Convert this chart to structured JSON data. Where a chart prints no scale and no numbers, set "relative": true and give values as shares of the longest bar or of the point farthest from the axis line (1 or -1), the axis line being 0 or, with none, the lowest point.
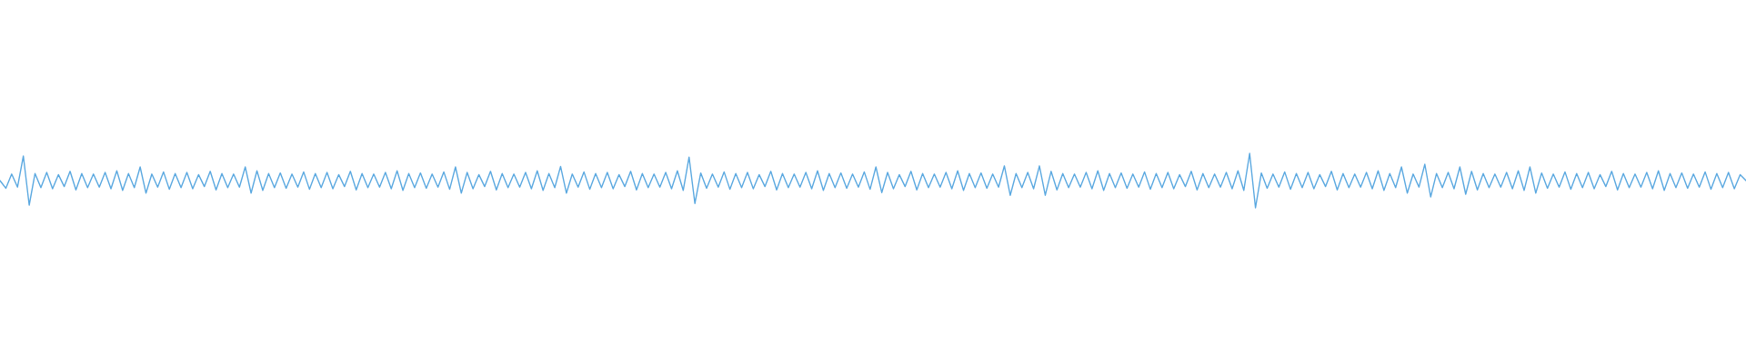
{
  "chart_data": {
    "type": "line",
    "relative": true,
    "categories": [
      null,
      null,
      null,
      null,
      null,
      null,
      null,
      null,
      null,
      null,
      null,
      null,
      null,
      null,
      null,
      null,
      null,
      null,
      null,
      null,
      null,
      null,
      null,
      null,
      null,
      null,
      null,
      null,
      null,
      null,
      null,
      null,
      null,
      null,
      null,
      null,
      null,
      null,
      null,
      null,
      null,
      null,
      null,
      null,
      null,
      null,
      null,
      null,
      null,
      null,
      null,
      null,
      null,
      null,
      null,
      null,
      null,
      null,
      null,
      null,
      null,
      null,
      null,
      null,
      null,
      null,
      null,
      null,
      null,
      null,
      null,
      null,
      null,
      null,
      null,
      null,
      null,
      null,
      null,
      null,
      null,
      null,
      null,
      null,
      null,
      null,
      null,
      null,
      null,
      null,
      null,
      null,
      null,
      null,
      null,
      null,
      null,
      null,
      null,
      null,
      null,
      null,
      null,
      null,
      null,
      null,
      null,
      null,
      null,
      null,
      null,
      null,
      null,
      null,
      null,
      null,
      null,
      null,
      null,
      null,
      null,
      null,
      null,
      null,
      null,
      null,
      null,
      null,
      null,
      null,
      null,
      null,
      null,
      null,
      null,
      null,
      null,
      null,
      null,
      null,
      null,
      null,
      null,
      null,
      null,
      null,
      null,
      null,
      null,
      null,
      null,
      null,
      null,
      null,
      null,
      null,
      null,
      null,
      null,
      null,
      null,
      null,
      null,
      null,
      null,
      null,
      null,
      null,
      null,
      null,
      null,
      null,
      null,
      null,
      null,
      null,
      null,
      null,
      null,
      null,
      null,
      null,
      null,
      null,
      null,
      null,
      null,
      null,
      null,
      null,
      null,
      null,
      null,
      null,
      null,
      null,
      null,
      null,
      null,
      null,
      null,
      null,
      null,
      null,
      null,
      null,
      null,
      null,
      null,
      null,
      null,
      null,
      null,
      null,
      null,
      null,
      null,
      null,
      null,
      null,
      null,
      null,
      null,
      null,
      null,
      null,
      null,
      null,
      null,
      null,
      null,
      null,
      null,
      null,
      null,
      null,
      null,
      null,
      null,
      null,
      null,
      null,
      null,
      null,
      null,
      null,
      null,
      null,
      null,
      null,
      null,
      null,
      null,
      null,
      null,
      null,
      null,
      null,
      null,
      null,
      null,
      null,
      null,
      null,
      null,
      null,
      null,
      null,
      null,
      null,
      null,
      null,
      null,
      null,
      null,
      null,
      null,
      null,
      null,
      null,
      null,
      null,
      null,
      null,
      null,
      null,
      null,
      null,
      null,
      null,
      null,
      null,
      null,
      null,
      null,
      null,
      null,
      null,
      null,
      null
    ],
    "series": [
      {
        "color": "#5aa8e0",
        "values": [
          0.5,
          0.36,
          0.62,
          0.38,
          0.95,
          0.05,
          0.63,
          0.37,
          0.65,
          0.35,
          0.61,
          0.39,
          0.67,
          0.33,
          0.63,
          0.37,
          0.62,
          0.38,
          0.65,
          0.35,
          0.68,
          0.32,
          0.63,
          0.37,
          0.75,
          0.27,
          0.62,
          0.38,
          0.66,
          0.34,
          0.63,
          0.37,
          0.65,
          0.35,
          0.61,
          0.39,
          0.67,
          0.33,
          0.63,
          0.37,
          0.62,
          0.38,
          0.75,
          0.27,
          0.68,
          0.32,
          0.63,
          0.37,
          0.64,
          0.36,
          0.62,
          0.38,
          0.66,
          0.34,
          0.63,
          0.37,
          0.65,
          0.35,
          0.61,
          0.39,
          0.67,
          0.33,
          0.63,
          0.37,
          0.62,
          0.38,
          0.65,
          0.35,
          0.68,
          0.32,
          0.63,
          0.37,
          0.64,
          0.36,
          0.62,
          0.38,
          0.66,
          0.34,
          0.75,
          0.27,
          0.65,
          0.35,
          0.61,
          0.39,
          0.67,
          0.33,
          0.63,
          0.37,
          0.62,
          0.38,
          0.65,
          0.35,
          0.68,
          0.32,
          0.63,
          0.37,
          0.76,
          0.27,
          0.62,
          0.38,
          0.66,
          0.34,
          0.63,
          0.37,
          0.65,
          0.35,
          0.61,
          0.39,
          0.67,
          0.33,
          0.63,
          0.37,
          0.62,
          0.38,
          0.65,
          0.35,
          0.68,
          0.32,
          0.93,
          0.08,
          0.64,
          0.36,
          0.62,
          0.38,
          0.66,
          0.34,
          0.63,
          0.37,
          0.65,
          0.35,
          0.61,
          0.39,
          0.67,
          0.33,
          0.63,
          0.37,
          0.62,
          0.38,
          0.65,
          0.35,
          0.68,
          0.32,
          0.63,
          0.37,
          0.64,
          0.36,
          0.62,
          0.38,
          0.66,
          0.34,
          0.75,
          0.28,
          0.65,
          0.35,
          0.61,
          0.39,
          0.67,
          0.33,
          0.63,
          0.37,
          0.62,
          0.38,
          0.65,
          0.35,
          0.68,
          0.32,
          0.63,
          0.37,
          0.64,
          0.36,
          0.62,
          0.38,
          0.77,
          0.23,
          0.63,
          0.37,
          0.65,
          0.35,
          0.77,
          0.23,
          0.67,
          0.33,
          0.63,
          0.37,
          0.62,
          0.38,
          0.65,
          0.35,
          0.68,
          0.32,
          0.63,
          0.37,
          0.64,
          0.36,
          0.62,
          0.38,
          0.66,
          0.34,
          0.63,
          0.37,
          0.65,
          0.35,
          0.61,
          0.39,
          0.67,
          0.33,
          0.63,
          0.37,
          0.62,
          0.38,
          0.65,
          0.35,
          0.68,
          0.32,
          1.0,
          0.0,
          0.64,
          0.36,
          0.62,
          0.38,
          0.66,
          0.34,
          0.63,
          0.37,
          0.65,
          0.35,
          0.61,
          0.39,
          0.67,
          0.33,
          0.63,
          0.37,
          0.62,
          0.38,
          0.65,
          0.35,
          0.68,
          0.32,
          0.63,
          0.37,
          0.75,
          0.27,
          0.62,
          0.38,
          0.8,
          0.2,
          0.63,
          0.37,
          0.65,
          0.35,
          0.75,
          0.25,
          0.67,
          0.33,
          0.63,
          0.37,
          0.62,
          0.38,
          0.65,
          0.35,
          0.68,
          0.32,
          0.75,
          0.27,
          0.64,
          0.36,
          0.62,
          0.38,
          0.66,
          0.34,
          0.63,
          0.37,
          0.65,
          0.35,
          0.61,
          0.39,
          0.67,
          0.33,
          0.63,
          0.37,
          0.62,
          0.38,
          0.65,
          0.35,
          0.68,
          0.32,
          0.63,
          0.37,
          0.64,
          0.36,
          0.62,
          0.38,
          0.66,
          0.34,
          0.63,
          0.37,
          0.65,
          0.35,
          0.61,
          0.5
        ]
      }
    ]
  }
}
